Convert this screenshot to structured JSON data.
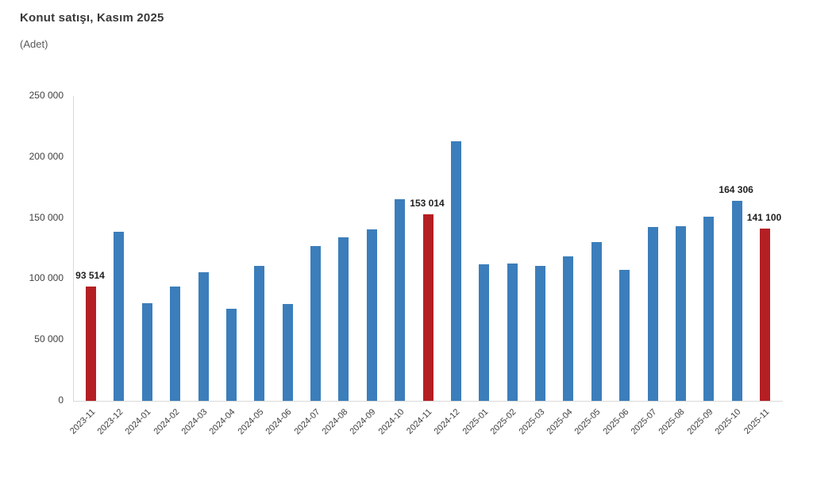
{
  "chart": {
    "title": "Konut satışı, Kasım 2025",
    "subtitle": "(Adet)"
  },
  "chart_data": {
    "type": "bar",
    "title": "Konut satışı, Kasım 2025",
    "subtitle": "(Adet)",
    "ylabel": "Adet",
    "xlabel": "",
    "grid": false,
    "legend": false,
    "ylim": [
      0,
      250000
    ],
    "yticks": [
      250000,
      200000,
      150000,
      100000,
      50000,
      0
    ],
    "ytick_labels": [
      "250 000",
      "200 000",
      "150 000",
      "100 000",
      "50 000",
      "0"
    ],
    "categories": [
      "2023-11",
      "2023-12",
      "2024-01",
      "2024-02",
      "2024-03",
      "2024-04",
      "2024-05",
      "2024-06",
      "2024-07",
      "2024-08",
      "2024-09",
      "2024-10",
      "2024-11",
      "2024-12",
      "2025-01",
      "2025-02",
      "2025-03",
      "2025-04",
      "2025-05",
      "2025-06",
      "2025-07",
      "2025-08",
      "2025-09",
      "2025-10",
      "2025-11"
    ],
    "values": [
      93514,
      138577,
      80308,
      93902,
      105476,
      75569,
      110588,
      79313,
      127088,
      134155,
      140919,
      165138,
      153014,
      212637,
      112173,
      112818,
      110795,
      118359,
      130025,
      107723,
      142858,
      143319,
      150738,
      164306,
      141100
    ],
    "bar_color": "#3b7ebb",
    "highlight_color": "#b41f24",
    "highlight_indices": [
      0,
      12,
      24
    ],
    "data_labels": [
      {
        "index": 0,
        "text": "93 514"
      },
      {
        "index": 12,
        "text": "153 014"
      },
      {
        "index": 23,
        "text": "164 306"
      },
      {
        "index": 24,
        "text": "141 100"
      }
    ]
  }
}
